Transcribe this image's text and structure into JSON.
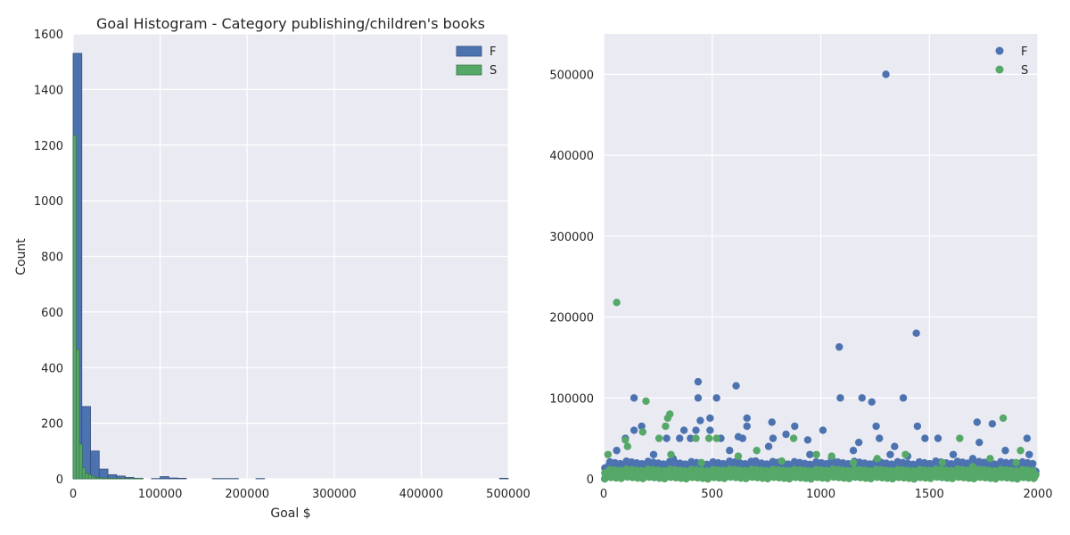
{
  "chart_data": [
    {
      "type": "bar",
      "title": "Goal Histogram - Category publishing/children's books",
      "xlabel": "Goal $",
      "ylabel": "Count",
      "xlim": [
        0,
        500000
      ],
      "ylim": [
        0,
        1600
      ],
      "xticks": [
        "0",
        "100000",
        "200000",
        "300000",
        "400000",
        "500000"
      ],
      "yticks": [
        "0",
        "200",
        "400",
        "600",
        "800",
        "1000",
        "1200",
        "1400",
        "1600"
      ],
      "grid": true,
      "legend": "top-right",
      "series": [
        {
          "name": "F",
          "color": "#4c72b0",
          "bin_width": 10000,
          "bin_starts": [
            0,
            10000,
            20000,
            30000,
            40000,
            50000,
            60000,
            70000,
            90000,
            100000,
            110000,
            120000,
            160000,
            170000,
            180000,
            210000,
            490000
          ],
          "values": [
            1530,
            260,
            100,
            35,
            15,
            10,
            5,
            2,
            1,
            8,
            3,
            2,
            1,
            1,
            1,
            1,
            2
          ]
        },
        {
          "name": "S",
          "color": "#55a868",
          "bin_width": 3500,
          "bin_starts": [
            0,
            3500,
            7000,
            10500,
            14000,
            17500,
            21000,
            24500,
            28000,
            31500,
            35000,
            38500,
            42000,
            45500,
            49000,
            52500,
            56000,
            59500,
            63000,
            66500,
            70000,
            73500,
            77000
          ],
          "values": [
            1235,
            465,
            125,
            40,
            20,
            15,
            10,
            5,
            5,
            3,
            3,
            2,
            2,
            2,
            3,
            2,
            1,
            1,
            1,
            1,
            1,
            2,
            2
          ]
        }
      ]
    },
    {
      "type": "scatter",
      "xlim": [
        0,
        2000
      ],
      "ylim": [
        0,
        550000
      ],
      "xticks": [
        "0",
        "500",
        "1000",
        "1500",
        "2000"
      ],
      "yticks": [
        "0",
        "100000",
        "200000",
        "300000",
        "400000",
        "500000"
      ],
      "grid": true,
      "legend": "top-right",
      "series": [
        {
          "name": "F",
          "color": "#4c72b0",
          "points": [
            [
              1300,
              500000
            ],
            [
              1085,
              163000
            ],
            [
              1440,
              180000
            ],
            [
              435,
              120000
            ],
            [
              610,
              115000
            ],
            [
              435,
              100000
            ],
            [
              520,
              100000
            ],
            [
              140,
              100000
            ],
            [
              1090,
              100000
            ],
            [
              1190,
              100000
            ],
            [
              1235,
              95000
            ],
            [
              1380,
              100000
            ],
            [
              490,
              75000
            ],
            [
              660,
              75000
            ],
            [
              445,
              72000
            ],
            [
              775,
              70000
            ],
            [
              1720,
              70000
            ],
            [
              1790,
              68000
            ],
            [
              175,
              65000
            ],
            [
              880,
              65000
            ],
            [
              1255,
              65000
            ],
            [
              1445,
              65000
            ],
            [
              660,
              65000
            ],
            [
              140,
              60000
            ],
            [
              490,
              60000
            ],
            [
              1010,
              60000
            ],
            [
              425,
              60000
            ],
            [
              370,
              60000
            ],
            [
              840,
              55000
            ],
            [
              100,
              50000
            ],
            [
              290,
              50000
            ],
            [
              350,
              50000
            ],
            [
              400,
              50000
            ],
            [
              540,
              50000
            ],
            [
              620,
              52000
            ],
            [
              640,
              50000
            ],
            [
              780,
              50000
            ],
            [
              940,
              48000
            ],
            [
              1175,
              45000
            ],
            [
              1270,
              50000
            ],
            [
              1340,
              40000
            ],
            [
              1480,
              50000
            ],
            [
              1540,
              50000
            ],
            [
              1730,
              45000
            ],
            [
              1950,
              50000
            ],
            [
              60,
              35000
            ],
            [
              230,
              30000
            ],
            [
              580,
              35000
            ],
            [
              760,
              40000
            ],
            [
              950,
              30000
            ],
            [
              1150,
              35000
            ],
            [
              1320,
              30000
            ],
            [
              1610,
              30000
            ],
            [
              1850,
              35000
            ],
            [
              1960,
              30000
            ],
            [
              30,
              20000
            ],
            [
              320,
              25000
            ],
            [
              700,
              22000
            ],
            [
              1050,
              25000
            ],
            [
              1400,
              28000
            ],
            [
              1700,
              25000
            ],
            [
              1880,
              20000
            ],
            [
              1980,
              10000
            ]
          ]
        },
        {
          "name": "S",
          "color": "#55a868",
          "points": [
            [
              60,
              218000
            ],
            [
              195,
              96000
            ],
            [
              305,
              80000
            ],
            [
              295,
              75000
            ],
            [
              1840,
              75000
            ],
            [
              285,
              65000
            ],
            [
              180,
              58000
            ],
            [
              520,
              50000
            ],
            [
              255,
              50000
            ],
            [
              425,
              50000
            ],
            [
              485,
              50000
            ],
            [
              875,
              50000
            ],
            [
              1640,
              50000
            ],
            [
              100,
              48000
            ],
            [
              110,
              40000
            ],
            [
              705,
              35000
            ],
            [
              1920,
              35000
            ],
            [
              1390,
              30000
            ],
            [
              20,
              30000
            ],
            [
              980,
              30000
            ],
            [
              1050,
              28000
            ],
            [
              1780,
              25000
            ],
            [
              620,
              28000
            ],
            [
              310,
              30000
            ],
            [
              1560,
              20000
            ],
            [
              1260,
              25000
            ],
            [
              820,
              22000
            ],
            [
              450,
              20000
            ],
            [
              1150,
              20000
            ],
            [
              1700,
              15000
            ],
            [
              1900,
              20000
            ]
          ]
        }
      ]
    }
  ]
}
